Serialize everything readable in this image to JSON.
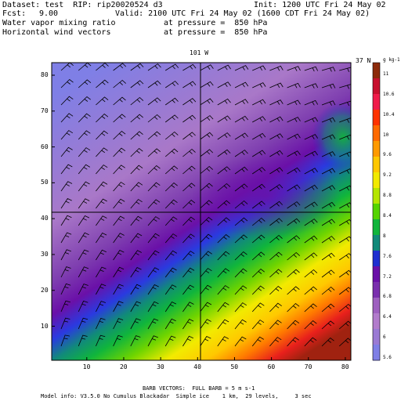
{
  "header": {
    "dataset": "Dataset: test  RIP: rip20020524 d3",
    "init": "Init: 1200 UTC Fri 24 May 02",
    "fcst_label": "Fcst:",
    "fcst_value": "9.00",
    "valid": "Valid: 2100 UTC Fri 24 May 02 (1600 CDT Fri 24 May 02)",
    "field1_name": "Water vapor mixing ratio",
    "field1_level": "at pressure =  850 hPa",
    "field2_name": "Horizontal wind vectors",
    "field2_level": "at pressure =  850 hPa"
  },
  "map": {
    "lon_label": "101 W",
    "lat_label": "37 N",
    "x_ticks": [
      "10",
      "20",
      "30",
      "40",
      "50",
      "60",
      "70",
      "80"
    ],
    "y_ticks": [
      "10",
      "20",
      "30",
      "40",
      "50",
      "60",
      "70",
      "80"
    ],
    "grid_lines": {
      "x": 40,
      "y": 41
    }
  },
  "colorbar": {
    "unit": "g kg-1",
    "labels": [
      "11",
      "10.6",
      "10.4",
      "10",
      "9.6",
      "9.2",
      "8.8",
      "8.4",
      "8",
      "7.6",
      "7.2",
      "6.8",
      "6.4",
      "6",
      "5.6"
    ],
    "colors": [
      "#8c2a0a",
      "#c8102e",
      "#f01b4a",
      "#ff3300",
      "#ff6a00",
      "#ff9a00",
      "#ffc800",
      "#f2ea00",
      "#b5e600",
      "#55d400",
      "#10b53c",
      "#118a7a",
      "#1f2fd0",
      "#6a10a8",
      "#7a2fae",
      "#9e60c0",
      "#b27ccc",
      "#9a7ad4",
      "#7f7fe6"
    ]
  },
  "footer": {
    "line1": "BARB VECTORS:  FULL BARB = 5 m s-1",
    "line2": "Model info: V3.5.0 No Cumulus Blackadar  Simple ice    1 km,  29 levels,     3 sec"
  }
}
